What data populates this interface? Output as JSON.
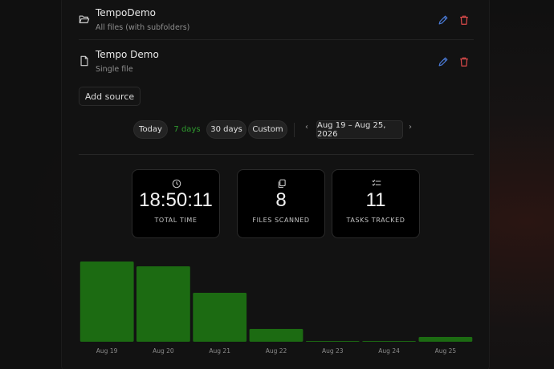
{
  "sources": [
    {
      "icon": "folder-open-icon",
      "title": "TempoDemo",
      "subtitle": "All files (with subfolders)"
    },
    {
      "icon": "file-icon",
      "title": "Tempo Demo",
      "subtitle": "Single file"
    }
  ],
  "add_source_label": "Add source",
  "range": {
    "today": "Today",
    "seven_days": "7 days",
    "thirty_days": "30 days",
    "custom": "Custom",
    "prev_arrow": "‹",
    "next_arrow": "›",
    "current": "Aug 19 – Aug 25, 2026",
    "active": "7 days"
  },
  "stats": [
    {
      "icon": "clock-icon",
      "value": "18:50:11",
      "label": "TOTAL TIME"
    },
    {
      "icon": "files-copy-icon",
      "value": "8",
      "label": "FILES SCANNED"
    },
    {
      "icon": "checklist-icon",
      "value": "11",
      "label": "TASKS TRACKED"
    }
  ],
  "colors": {
    "accent_green": "#2f9a2f",
    "bar_green": "#1c6b12",
    "edit_blue": "#4a7bd8",
    "delete_red": "#d94a4a"
  },
  "chart_data": {
    "type": "bar",
    "categories": [
      "Aug 19",
      "Aug 20",
      "Aug 21",
      "Aug 22",
      "Aug 23",
      "Aug 24",
      "Aug 25"
    ],
    "values": [
      100,
      94,
      61,
      16,
      1,
      1,
      6
    ],
    "ylim": [
      0,
      100
    ],
    "title": "",
    "xlabel": "",
    "ylabel": "",
    "grid": false,
    "legend": "none"
  }
}
